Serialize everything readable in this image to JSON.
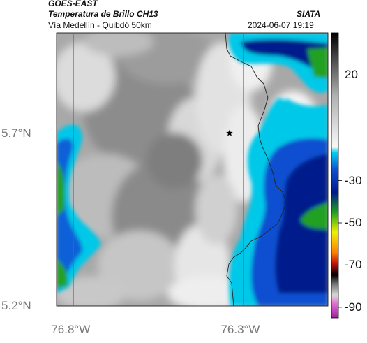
{
  "header": {
    "agency": "GOES-EAST",
    "product": "Temperatura de Brillo CH13",
    "route": "Vía Medellín - Quibdó 50km",
    "brand": "SIATA",
    "timestamp": "2024-06-07 19:19"
  },
  "map": {
    "lon_range": [
      -76.85,
      -76.05
    ],
    "lat_range": [
      5.2,
      5.99
    ],
    "lon_ticks": [
      {
        "value": -76.8,
        "label": "76.8°W"
      },
      {
        "value": -76.3,
        "label": "76.3°W"
      }
    ],
    "lat_ticks": [
      {
        "value": 5.7,
        "label": "5.7°N"
      },
      {
        "value": 5.2,
        "label": "5.2°N"
      }
    ],
    "gridlines": true,
    "marker": {
      "lon": -76.34,
      "lat": 5.7,
      "symbol": "star"
    }
  },
  "colorbar": {
    "range": [
      -95,
      40
    ],
    "ticks": [
      {
        "value": 20,
        "label": "20"
      },
      {
        "value": -30,
        "label": "-30"
      },
      {
        "value": -50,
        "label": "-50"
      },
      {
        "value": -70,
        "label": "-70"
      },
      {
        "value": -90,
        "label": "-90"
      }
    ],
    "colors": {
      "cold_magenta": "#c040c0",
      "red": "#cc1010",
      "yellow": "#f0f000",
      "green": "#20a020",
      "dark_blue": "#001a8c",
      "cyan": "#00c8e8",
      "gray_white": "#f4f4f4",
      "black": "#000000"
    }
  }
}
